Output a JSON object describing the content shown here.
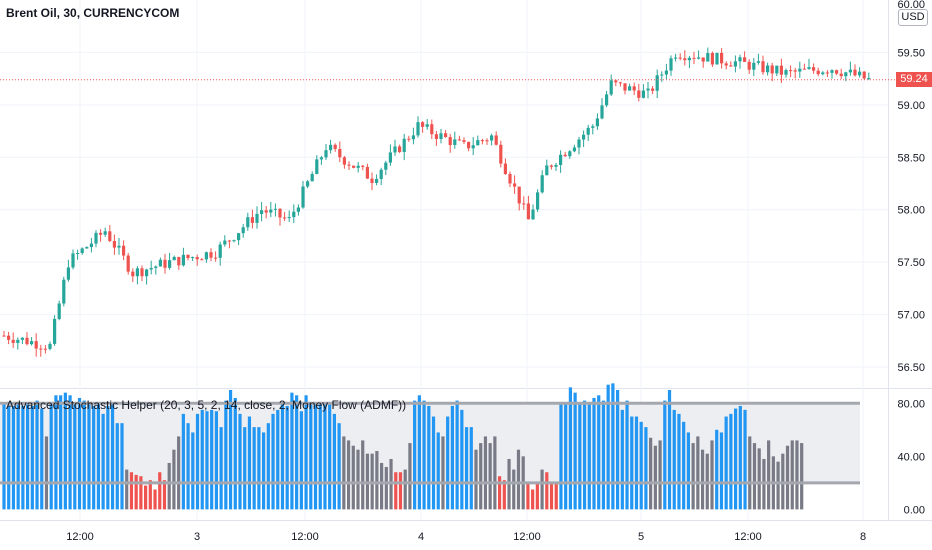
{
  "header": {
    "title": "Brent Oil, 30, CURRENCYCOM",
    "currency": "USD",
    "last_price": "59.24",
    "top_cut_label": "60.00"
  },
  "chart_data": [
    {
      "type": "candlestick",
      "title": "Brent Oil, 30, CURRENCYCOM",
      "ylim": [
        56.3,
        60.0
      ],
      "y_ticks": [
        "59.50",
        "59.00",
        "58.50",
        "58.00",
        "57.50",
        "57.00",
        "56.50"
      ],
      "y_tick_values": [
        59.5,
        59.0,
        58.5,
        58.0,
        57.5,
        57.0,
        56.5
      ],
      "x_ticks": [
        "12:00",
        "3",
        "12:00",
        "4",
        "12:00",
        "5",
        "12:00",
        "8"
      ],
      "last_price": 59.24,
      "waypoints_index": [
        0,
        10,
        14,
        22,
        28,
        36,
        46,
        56,
        62,
        70,
        80,
        90,
        100,
        106,
        114,
        118,
        128,
        132,
        140,
        146,
        160,
        170,
        180,
        188
      ],
      "waypoints_price": [
        56.8,
        56.7,
        57.5,
        57.8,
        57.4,
        57.5,
        57.6,
        58.0,
        57.9,
        58.6,
        58.3,
        58.8,
        58.6,
        58.7,
        57.9,
        58.4,
        58.8,
        59.2,
        59.1,
        59.5,
        59.4,
        59.3,
        59.35,
        59.24
      ],
      "colors": {
        "up": "#26a69a",
        "down": "#ef5350"
      }
    },
    {
      "type": "bar",
      "title": "Advanced Stochastic Helper (20, 3, 5, 2, 14, close, 2, Money Flow (ADMF))",
      "ylim": [
        -8,
        90
      ],
      "y_ticks": [
        "80.00",
        "40.00",
        "0.00"
      ],
      "y_tick_values": [
        80,
        40,
        0
      ],
      "bands": [
        20,
        80
      ],
      "values": [
        80,
        78,
        78,
        80,
        78,
        80,
        78,
        82,
        76,
        55,
        80,
        86,
        86,
        88,
        86,
        80,
        84,
        82,
        80,
        78,
        80,
        72,
        78,
        80,
        65,
        65,
        30,
        28,
        26,
        25,
        18,
        22,
        15,
        28,
        22,
        35,
        45,
        55,
        72,
        65,
        58,
        72,
        75,
        74,
        75,
        74,
        62,
        82,
        90,
        84,
        72,
        62,
        70,
        62,
        62,
        58,
        65,
        72,
        75,
        80,
        78,
        88,
        86,
        74,
        86,
        80,
        80,
        80,
        80,
        80,
        72,
        65,
        55,
        52,
        48,
        45,
        52,
        42,
        42,
        44,
        35,
        32,
        38,
        28,
        28,
        30,
        50,
        82,
        86,
        82,
        78,
        70,
        58,
        55,
        70,
        78,
        82,
        75,
        62,
        62,
        45,
        50,
        55,
        50,
        55,
        25,
        22,
        38,
        30,
        45,
        40,
        20,
        15,
        20,
        30,
        28,
        20,
        20,
        80,
        80,
        92,
        88,
        80,
        82,
        80,
        84,
        86,
        82,
        94,
        95,
        90,
        75,
        82,
        70,
        70,
        66,
        62,
        54,
        48,
        52,
        82,
        90,
        75,
        72,
        66,
        58,
        50,
        55,
        45,
        42,
        52,
        60,
        58,
        70,
        72,
        76,
        78,
        75,
        55,
        50,
        46,
        38,
        52,
        40,
        36,
        42,
        48,
        52,
        52,
        50
      ],
      "colors": {
        "blue": "#2196f3",
        "gray": "#787b86",
        "red": "#ef5350"
      }
    }
  ]
}
